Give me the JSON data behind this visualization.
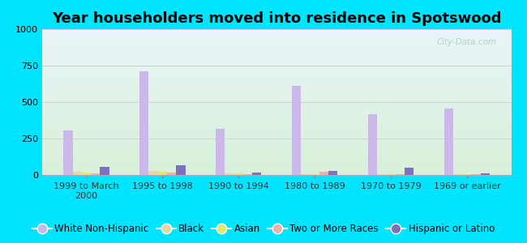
{
  "title": "Year householders moved into residence in Spotswood",
  "categories": [
    "1999 to March\n2000",
    "1995 to 1998",
    "1990 to 1994",
    "1980 to 1989",
    "1970 to 1979",
    "1969 or earlier"
  ],
  "series": {
    "White Non-Hispanic": [
      305,
      710,
      315,
      610,
      415,
      455
    ],
    "Black": [
      20,
      30,
      10,
      8,
      5,
      5
    ],
    "Asian": [
      18,
      22,
      12,
      5,
      3,
      3
    ],
    "Two or More Races": [
      10,
      15,
      8,
      20,
      5,
      5
    ],
    "Hispanic or Latino": [
      55,
      65,
      15,
      28,
      50,
      10
    ]
  },
  "colors": {
    "White Non-Hispanic": "#c9b8e8",
    "Black": "#e8d8a0",
    "Asian": "#e8e860",
    "Two or More Races": "#f0b0a8",
    "Hispanic or Latino": "#8070c0"
  },
  "ylim": [
    0,
    1000
  ],
  "yticks": [
    0,
    250,
    500,
    750,
    1000
  ],
  "background_outer": "#00e5ff",
  "background_plot_top": "#e8f4f8",
  "background_plot_bottom": "#d8f0d8",
  "grid_color": "#cccccc",
  "bar_width": 0.12,
  "title_fontsize": 13,
  "tick_fontsize": 8,
  "legend_fontsize": 8.5,
  "watermark": "City-Data.com"
}
